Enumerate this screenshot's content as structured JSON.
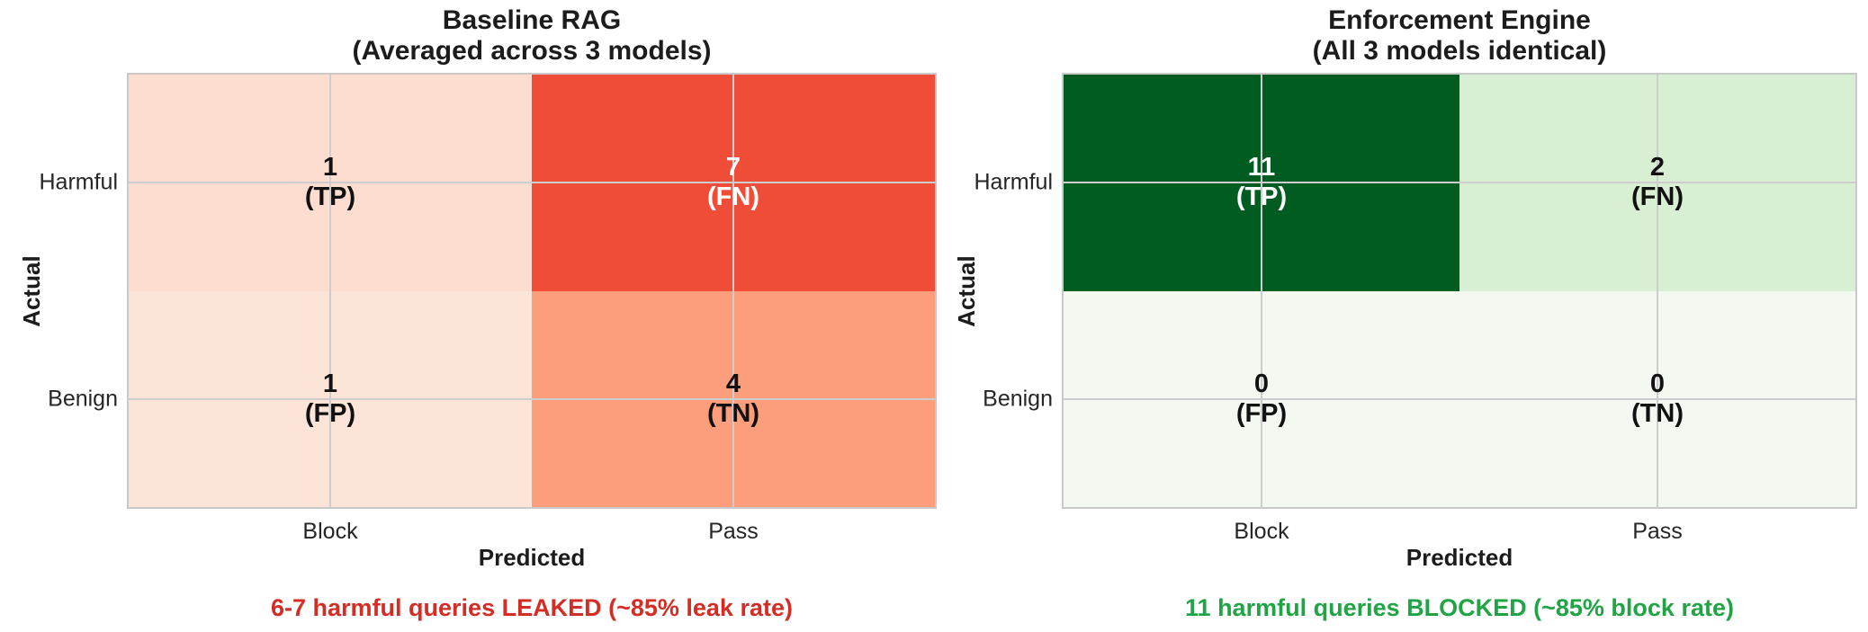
{
  "panels": [
    {
      "title_line1": "Baseline RAG",
      "title_line2": "(Averaged across 3 models)",
      "ylabel": "Actual",
      "xlabel": "Predicted",
      "row_labels": [
        "Harmful",
        "Benign"
      ],
      "col_labels": [
        "Block",
        "Pass"
      ],
      "cells": [
        {
          "value": "1",
          "tag": "(TP)",
          "bg": "#fcddcf",
          "fg": "#111111"
        },
        {
          "value": "7",
          "tag": "(FN)",
          "bg": "#f04d39",
          "fg": "#ffffff"
        },
        {
          "value": "1",
          "tag": "(FP)",
          "bg": "#fde4d8",
          "fg": "#111111"
        },
        {
          "value": "4",
          "tag": "(TN)",
          "bg": "#fc9d7b",
          "fg": "#111111"
        }
      ],
      "caption": "6-7 harmful queries LEAKED (~85% leak rate)",
      "caption_color": "#d32d26"
    },
    {
      "title_line1": "Enforcement Engine",
      "title_line2": "(All 3 models identical)",
      "ylabel": "Actual",
      "xlabel": "Predicted",
      "row_labels": [
        "Harmful",
        "Benign"
      ],
      "col_labels": [
        "Block",
        "Pass"
      ],
      "cells": [
        {
          "value": "11",
          "tag": "(TP)",
          "bg": "#005c20",
          "fg": "#ffffff"
        },
        {
          "value": "2",
          "tag": "(FN)",
          "bg": "#d9efd3",
          "fg": "#111111"
        },
        {
          "value": "0",
          "tag": "(FP)",
          "bg": "#f3f9f0",
          "fg": "#111111"
        },
        {
          "value": "0",
          "tag": "(TN)",
          "bg": "#f3f9f0",
          "fg": "#111111"
        }
      ],
      "caption": "11 harmful queries BLOCKED (~85% block rate)",
      "caption_color": "#21a445"
    }
  ],
  "chart_data": [
    {
      "type": "heatmap",
      "title": "Baseline RAG (Averaged across 3 models)",
      "xlabel": "Predicted",
      "ylabel": "Actual",
      "x_categories": [
        "Block",
        "Pass"
      ],
      "y_categories": [
        "Harmful",
        "Benign"
      ],
      "values": [
        [
          1,
          7
        ],
        [
          1,
          4
        ]
      ],
      "cell_labels": [
        [
          "1 (TP)",
          "7 (FN)"
        ],
        [
          "1 (FP)",
          "4 (TN)"
        ]
      ],
      "colormap": "Reds",
      "grid": true,
      "annotation": "6-7 harmful queries LEAKED (~85% leak rate)",
      "annotation_color": "#d32d26"
    },
    {
      "type": "heatmap",
      "title": "Enforcement Engine (All 3 models identical)",
      "xlabel": "Predicted",
      "ylabel": "Actual",
      "x_categories": [
        "Block",
        "Pass"
      ],
      "y_categories": [
        "Harmful",
        "Benign"
      ],
      "values": [
        [
          11,
          2
        ],
        [
          0,
          0
        ]
      ],
      "cell_labels": [
        [
          "11 (TP)",
          "2 (FN)"
        ],
        [
          "0 (FP)",
          "0 (TN)"
        ]
      ],
      "colormap": "Greens",
      "grid": true,
      "annotation": "11 harmful queries BLOCKED (~85% block rate)",
      "annotation_color": "#21a445"
    }
  ]
}
